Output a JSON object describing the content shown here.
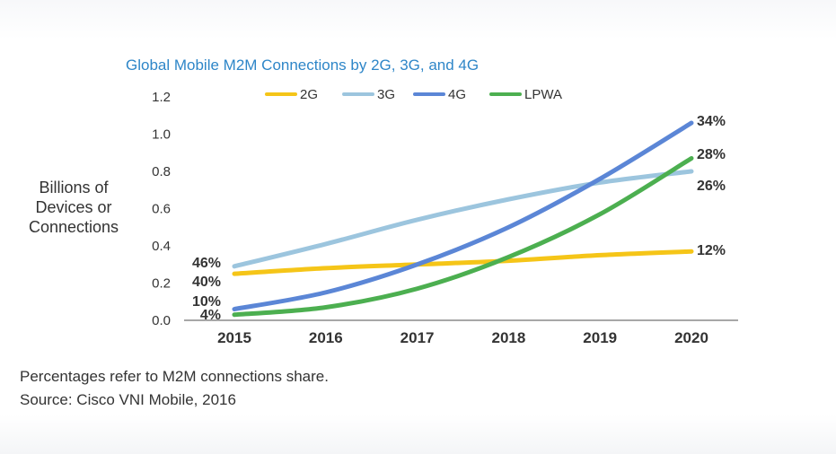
{
  "footnotes": {
    "note": "Percentages refer to M2M connections share.",
    "source": "Source: Cisco VNI Mobile, 2016"
  },
  "chart_data": {
    "type": "line",
    "title": "Global Mobile M2M Connections by 2G, 3G, and 4G",
    "title_color": "#2e86c8",
    "ylabel": [
      "Billions of",
      "Devices or",
      "Connections"
    ],
    "xlabel": "",
    "x": [
      "2015",
      "2016",
      "2017",
      "2018",
      "2019",
      "2020"
    ],
    "ylim": [
      0,
      1.2
    ],
    "yticks": [
      "0.0",
      "0.2",
      "0.4",
      "0.6",
      "0.8",
      "1.0",
      "1.2"
    ],
    "grid": false,
    "legend_position": "top",
    "series": [
      {
        "name": "2G",
        "color": "#f5c518",
        "values": [
          0.25,
          0.28,
          0.3,
          0.32,
          0.35,
          0.37
        ],
        "start_label": "40%",
        "end_label": "12%"
      },
      {
        "name": "3G",
        "color": "#9cc5de",
        "values": [
          0.29,
          0.41,
          0.54,
          0.65,
          0.74,
          0.8
        ],
        "start_label": "46%",
        "end_label": "26%"
      },
      {
        "name": "4G",
        "color": "#5b86d6",
        "values": [
          0.06,
          0.15,
          0.3,
          0.5,
          0.76,
          1.06
        ],
        "start_label": "10%",
        "end_label": "34%"
      },
      {
        "name": "LPWA",
        "color": "#4caf50",
        "values": [
          0.03,
          0.07,
          0.17,
          0.34,
          0.57,
          0.87
        ],
        "start_label": "4%",
        "end_label": "28%"
      }
    ]
  }
}
